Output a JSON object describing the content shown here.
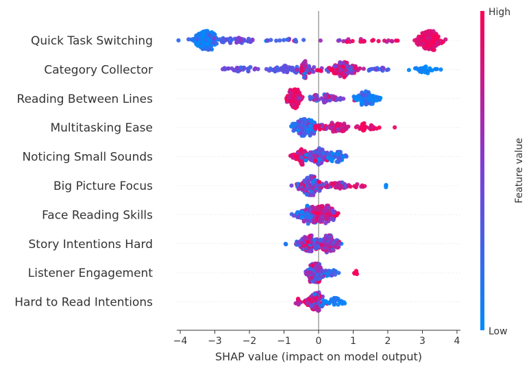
{
  "chart_data": {
    "type": "scatter",
    "subtype": "shap-beeswarm",
    "title": "",
    "xlabel": "SHAP value (impact on model output)",
    "ylabel": "",
    "xlim": [
      -4.1,
      4.1
    ],
    "xticks": [
      -4,
      -3,
      -2,
      -1,
      0,
      1,
      2,
      3,
      4
    ],
    "xtick_labels": [
      "−4",
      "−3",
      "−2",
      "−1",
      "0",
      "1",
      "2",
      "3",
      "4"
    ],
    "grid": false,
    "colorbar": {
      "label": "Feature value",
      "high_label": "High",
      "low_label": "Low",
      "low_color": "#008bfb",
      "mid_color": "#7c3fd6",
      "high_color": "#ff0052"
    },
    "features": [
      {
        "name": "Quick Task Switching",
        "clusters": [
          {
            "center": -3.25,
            "spread": 0.33,
            "count": 170,
            "value": 0.12,
            "value_spread": 0.12
          },
          {
            "center": -2.35,
            "spread": 0.45,
            "count": 45,
            "value": 0.35,
            "value_spread": 0.15
          },
          {
            "center": -1.0,
            "spread": 0.55,
            "count": 14,
            "value": 0.35,
            "value_spread": 0.2
          },
          {
            "center": 0.8,
            "spread": 0.5,
            "count": 12,
            "value": 0.75,
            "value_spread": 0.15
          },
          {
            "center": 1.8,
            "spread": 0.45,
            "count": 12,
            "value": 0.85,
            "value_spread": 0.1
          },
          {
            "center": 3.2,
            "spread": 0.28,
            "count": 160,
            "value": 0.9,
            "value_spread": 0.08
          }
        ]
      },
      {
        "name": "Category Collector",
        "clusters": [
          {
            "center": -2.2,
            "spread": 0.55,
            "count": 30,
            "value": 0.4,
            "value_spread": 0.1
          },
          {
            "center": -0.9,
            "spread": 0.45,
            "count": 50,
            "value": 0.38,
            "value_spread": 0.1
          },
          {
            "center": -0.35,
            "spread": 0.18,
            "count": 50,
            "value": 0.55,
            "value_spread": 0.3
          },
          {
            "center": 0.7,
            "spread": 0.38,
            "count": 120,
            "value": 0.72,
            "value_spread": 0.25
          },
          {
            "center": 1.7,
            "spread": 0.25,
            "count": 18,
            "value": 0.3,
            "value_spread": 0.15
          },
          {
            "center": 3.1,
            "spread": 0.35,
            "count": 30,
            "value": 0.03,
            "value_spread": 0.03
          }
        ]
      },
      {
        "name": "Reading Between Lines",
        "clusters": [
          {
            "center": -0.7,
            "spread": 0.18,
            "count": 120,
            "value": 0.88,
            "value_spread": 0.1
          },
          {
            "center": 0.2,
            "spread": 0.45,
            "count": 60,
            "value": 0.55,
            "value_spread": 0.2
          },
          {
            "center": 1.4,
            "spread": 0.3,
            "count": 90,
            "value": 0.12,
            "value_spread": 0.12
          }
        ]
      },
      {
        "name": "Multitasking Ease",
        "clusters": [
          {
            "center": -0.4,
            "spread": 0.33,
            "count": 140,
            "value": 0.22,
            "value_spread": 0.2
          },
          {
            "center": 0.45,
            "spread": 0.35,
            "count": 60,
            "value": 0.82,
            "value_spread": 0.12
          },
          {
            "center": 1.4,
            "spread": 0.35,
            "count": 30,
            "value": 0.92,
            "value_spread": 0.08
          }
        ]
      },
      {
        "name": "Noticing Small Sounds",
        "clusters": [
          {
            "center": -0.5,
            "spread": 0.22,
            "count": 60,
            "value": 0.88,
            "value_spread": 0.1
          },
          {
            "center": 0.0,
            "spread": 0.28,
            "count": 100,
            "value": 0.4,
            "value_spread": 0.25
          },
          {
            "center": 0.55,
            "spread": 0.2,
            "count": 50,
            "value": 0.15,
            "value_spread": 0.15
          }
        ]
      },
      {
        "name": "Big Picture Focus",
        "clusters": [
          {
            "center": -0.25,
            "spread": 0.3,
            "count": 150,
            "value": 0.45,
            "value_spread": 0.3
          },
          {
            "center": 0.6,
            "spread": 0.35,
            "count": 40,
            "value": 0.7,
            "value_spread": 0.2
          },
          {
            "center": 1.2,
            "spread": 0.2,
            "count": 8,
            "value": 0.85,
            "value_spread": 0.1
          },
          {
            "center": 1.95,
            "spread": 0.02,
            "count": 3,
            "value": 0.02,
            "value_spread": 0.02
          }
        ]
      },
      {
        "name": "Face Reading Skills",
        "clusters": [
          {
            "center": -0.3,
            "spread": 0.3,
            "count": 110,
            "value": 0.3,
            "value_spread": 0.25
          },
          {
            "center": 0.2,
            "spread": 0.28,
            "count": 130,
            "value": 0.75,
            "value_spread": 0.2
          }
        ]
      },
      {
        "name": "Story Intentions Hard",
        "clusters": [
          {
            "center": -0.3,
            "spread": 0.32,
            "count": 110,
            "value": 0.6,
            "value_spread": 0.3
          },
          {
            "center": 0.3,
            "spread": 0.25,
            "count": 100,
            "value": 0.55,
            "value_spread": 0.3
          },
          {
            "center": -0.95,
            "spread": 0.03,
            "count": 2,
            "value": 0.1,
            "value_spread": 0.05
          }
        ]
      },
      {
        "name": "Listener Engagement",
        "clusters": [
          {
            "center": -0.1,
            "spread": 0.22,
            "count": 150,
            "value": 0.55,
            "value_spread": 0.3
          },
          {
            "center": 0.35,
            "spread": 0.15,
            "count": 20,
            "value": 0.3,
            "value_spread": 0.2
          },
          {
            "center": 1.08,
            "spread": 0.05,
            "count": 5,
            "value": 0.95,
            "value_spread": 0.03
          }
        ]
      },
      {
        "name": "Hard to Read Intentions",
        "clusters": [
          {
            "center": -0.1,
            "spread": 0.2,
            "count": 110,
            "value": 0.7,
            "value_spread": 0.25
          },
          {
            "center": 0.45,
            "spread": 0.25,
            "count": 40,
            "value": 0.12,
            "value_spread": 0.1
          },
          {
            "center": -0.6,
            "spread": 0.12,
            "count": 10,
            "value": 0.85,
            "value_spread": 0.1
          }
        ]
      }
    ]
  }
}
